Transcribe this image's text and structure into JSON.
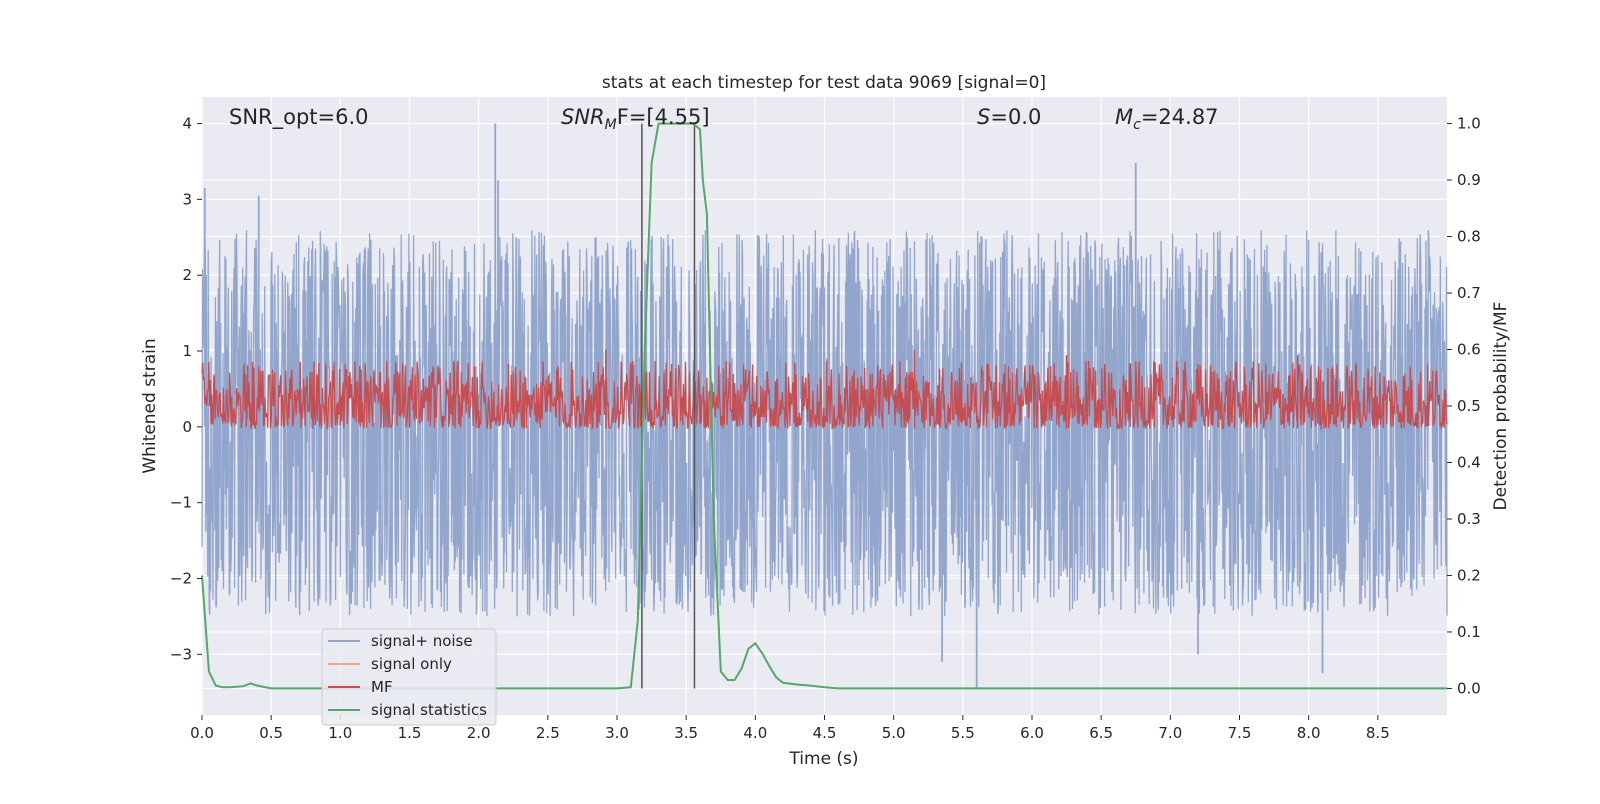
{
  "chart_data": {
    "type": "line",
    "title": "stats at each timestep for test data 9069 [signal=0]",
    "xlabel": "Time (s)",
    "ylabel_left": "Whitened strain",
    "ylabel_right": "Detection probability/MF",
    "xlim": [
      0,
      9
    ],
    "ylim_left": [
      -3.8,
      4.35
    ],
    "ylim_right": [
      -0.047,
      1.047
    ],
    "x_ticks": [
      "0.0",
      "0.5",
      "1.0",
      "1.5",
      "2.0",
      "2.5",
      "3.0",
      "3.5",
      "4.0",
      "4.5",
      "5.0",
      "5.5",
      "6.0",
      "6.5",
      "7.0",
      "7.5",
      "8.0",
      "8.5"
    ],
    "y_ticks_left": [
      "−3",
      "−2",
      "−1",
      "0",
      "1",
      "2",
      "3",
      "4"
    ],
    "y_ticks_right": [
      "0.0",
      "0.1",
      "0.2",
      "0.3",
      "0.4",
      "0.5",
      "0.6",
      "0.7",
      "0.8",
      "0.9",
      "1.0"
    ],
    "grid": true,
    "legend_placement": "lower-left",
    "annotations": {
      "snr_opt": "SNR_opt=6.0",
      "snr_mf_main": "SNR",
      "snr_mf_sub": "M",
      "snr_mf_rest": "F=[4.55]",
      "s_main": "S",
      "s_rest": "=0.0",
      "mc_main": "M",
      "mc_sub": "c",
      "mc_rest": "=24.87"
    },
    "vlines_x": [
      3.18,
      3.56
    ],
    "series": [
      {
        "name": "signal+ noise",
        "axis": "left",
        "color": "#92a6cd",
        "noise": {
          "min": -2.5,
          "max": 2.6,
          "spikes": [
            [
              0.02,
              3.15
            ],
            [
              0.41,
              3.05
            ],
            [
              2.12,
              4.0
            ],
            [
              2.14,
              3.25
            ],
            [
              6.75,
              3.48
            ],
            [
              5.6,
              -3.45
            ],
            [
              8.1,
              -3.25
            ],
            [
              7.2,
              -3.0
            ],
            [
              5.35,
              -3.1
            ]
          ]
        }
      },
      {
        "name": "signal only",
        "axis": "left",
        "color": "#e8a78c",
        "values": []
      },
      {
        "name": "MF",
        "axis": "right",
        "color": "#c44e52",
        "band": {
          "low": 0.46,
          "high": 0.58,
          "spikes": [
            [
              2.92,
              0.6
            ],
            [
              5.15,
              0.6
            ],
            [
              6.25,
              0.59
            ],
            [
              7.92,
              0.59
            ]
          ]
        }
      },
      {
        "name": "signal statistics",
        "axis": "right",
        "color": "#55a868",
        "x": [
          0.0,
          0.05,
          0.1,
          0.15,
          0.2,
          0.3,
          0.35,
          0.4,
          0.5,
          1.0,
          2.0,
          3.0,
          3.1,
          3.15,
          3.2,
          3.25,
          3.3,
          3.35,
          3.4,
          3.45,
          3.5,
          3.55,
          3.6,
          3.62,
          3.65,
          3.7,
          3.75,
          3.8,
          3.85,
          3.9,
          3.95,
          4.0,
          4.05,
          4.1,
          4.15,
          4.2,
          4.3,
          4.4,
          4.5,
          4.6,
          5.0,
          6.0,
          7.0,
          8.0,
          9.0
        ],
        "y": [
          0.2,
          0.03,
          0.005,
          0.002,
          0.002,
          0.004,
          0.009,
          0.005,
          0.0,
          0.0,
          0.0,
          0.0,
          0.002,
          0.12,
          0.6,
          0.93,
          1.0,
          1.0,
          1.0,
          1.0,
          1.0,
          1.0,
          0.99,
          0.9,
          0.84,
          0.3,
          0.03,
          0.015,
          0.015,
          0.035,
          0.07,
          0.08,
          0.062,
          0.04,
          0.02,
          0.01,
          0.007,
          0.005,
          0.002,
          0.0,
          0.0,
          0.0,
          0.0,
          0.0,
          0.0
        ]
      }
    ]
  }
}
